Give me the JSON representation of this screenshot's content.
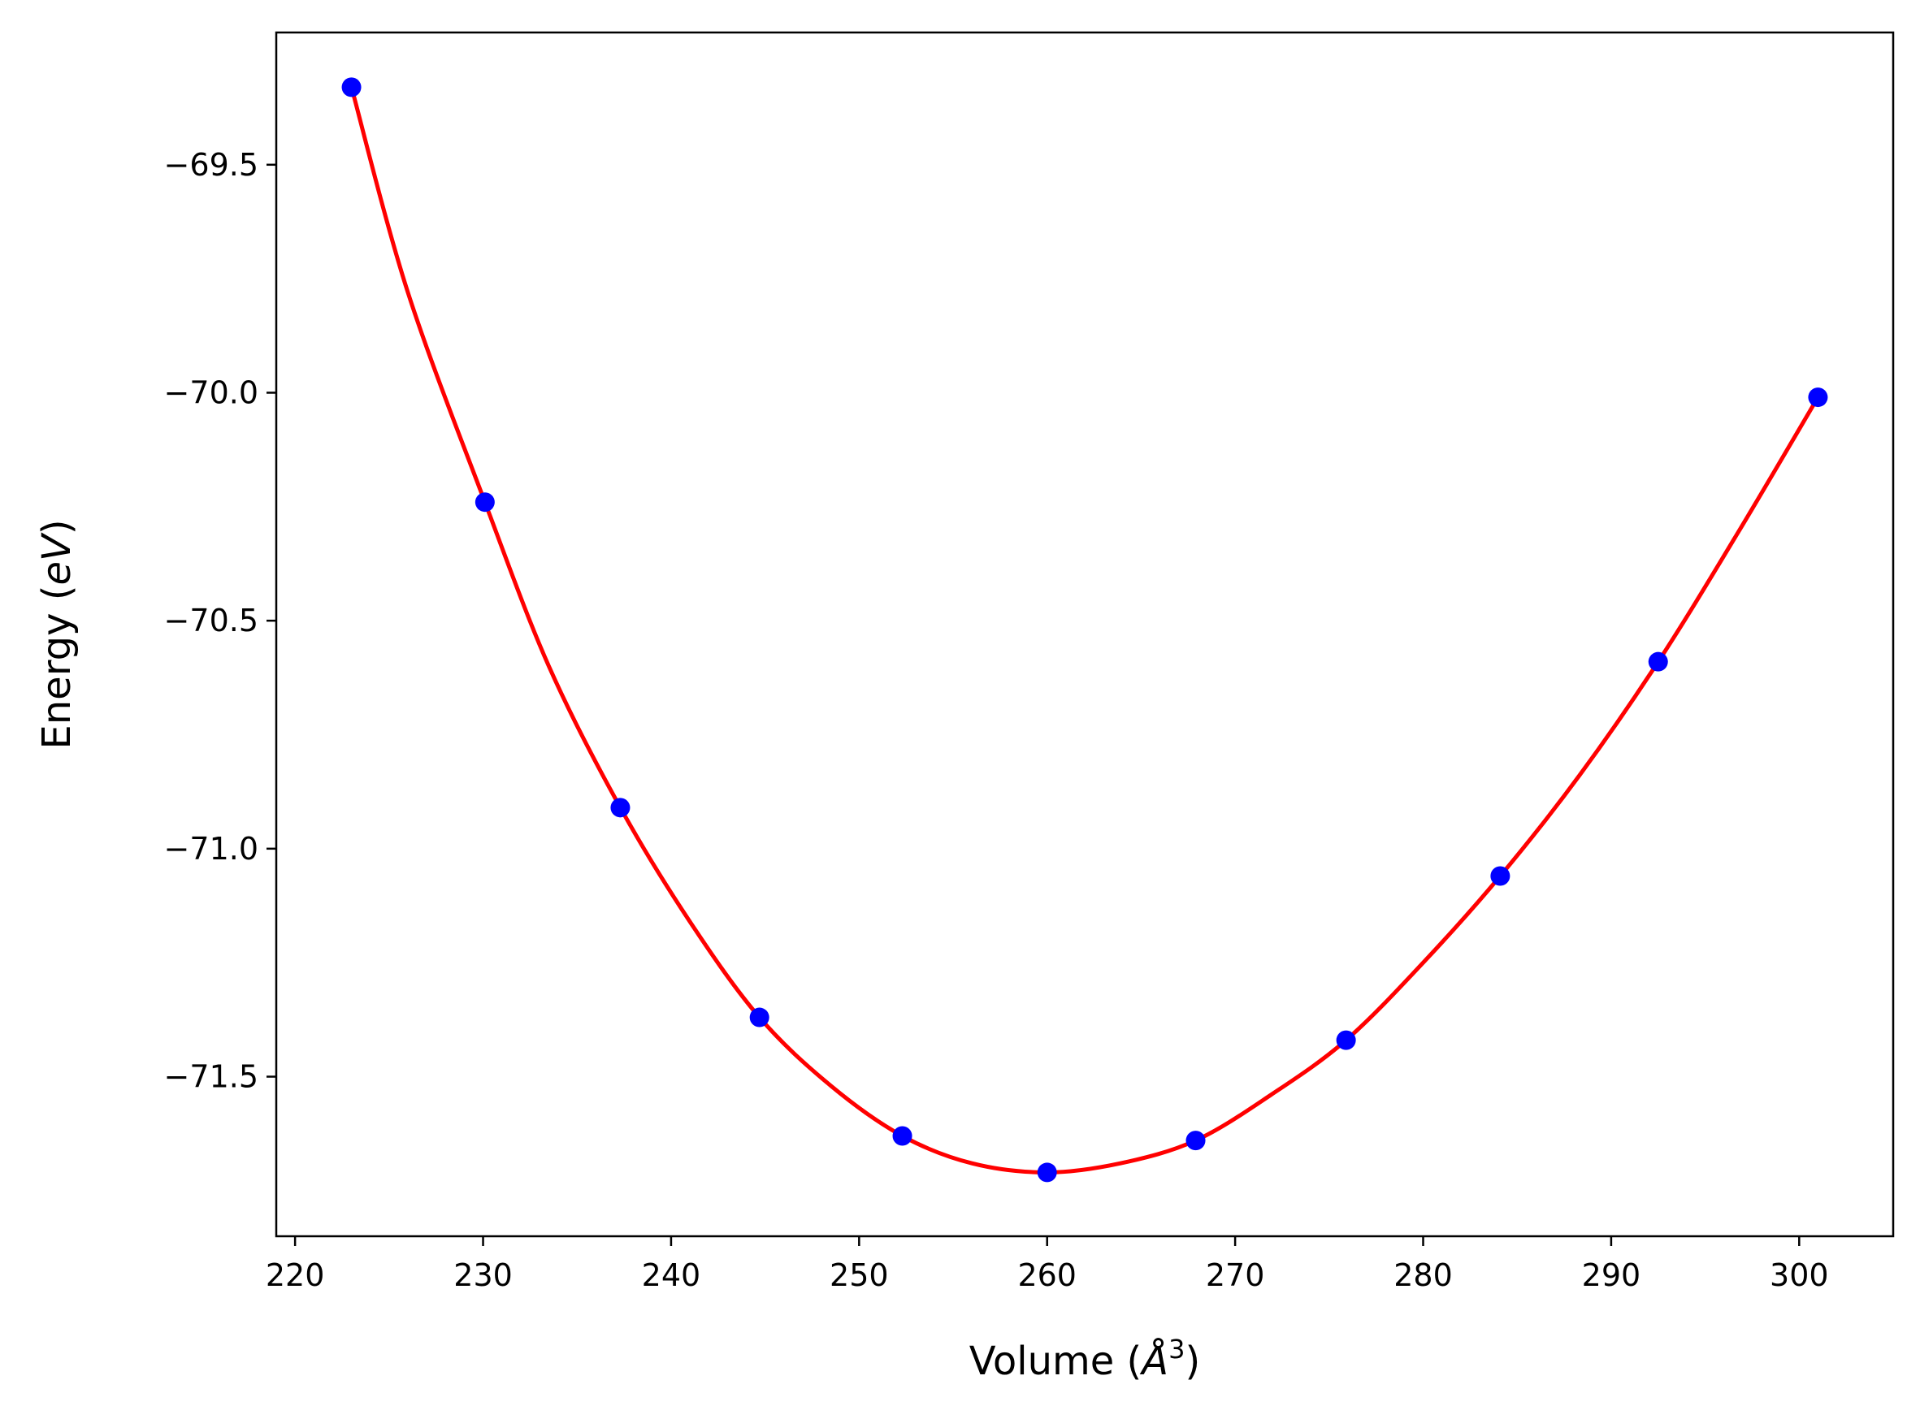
{
  "chart_data": {
    "type": "scatter",
    "xlabel": "Volume (",
    "xlabel_italic": "Å",
    "xlabel_sup": "3",
    "xlabel_close": ")",
    "ylabel": "Energy (",
    "ylabel_italic": "eV",
    "ylabel_close": ")",
    "xlim": [
      219,
      305
    ],
    "ylim": [
      -71.85,
      -69.21
    ],
    "xticks": [
      220,
      230,
      240,
      250,
      260,
      270,
      280,
      290,
      300
    ],
    "xtick_labels": [
      "220",
      "230",
      "240",
      "250",
      "260",
      "270",
      "280",
      "290",
      "300"
    ],
    "yticks": [
      -69.5,
      -70.0,
      -70.5,
      -71.0,
      -71.5
    ],
    "ytick_labels": [
      "−69.5",
      "−70.0",
      "−70.5",
      "−71.0",
      "−71.5"
    ],
    "grid": false,
    "series": [
      {
        "kind": "points",
        "color": "#0000ff",
        "x": [
          223.0,
          230.1,
          237.3,
          244.7,
          252.3,
          260.0,
          267.9,
          275.9,
          284.1,
          292.5,
          301.0
        ],
        "y": [
          -69.33,
          -70.24,
          -70.91,
          -71.37,
          -71.63,
          -71.71,
          -71.64,
          -71.42,
          -71.06,
          -70.59,
          -70.01
        ]
      },
      {
        "kind": "fit-curve",
        "color": "#ff0000",
        "x": [
          223.0,
          226.0,
          230.1,
          233.5,
          237.3,
          241.0,
          244.7,
          248.5,
          252.3,
          256.0,
          260.0,
          263.9,
          267.9,
          271.9,
          275.9,
          280.0,
          284.1,
          288.3,
          292.5,
          296.7,
          301.0
        ],
        "y": [
          -69.33,
          -69.78,
          -70.24,
          -70.6,
          -70.91,
          -71.16,
          -71.37,
          -71.52,
          -71.63,
          -71.69,
          -71.71,
          -71.69,
          -71.64,
          -71.54,
          -71.42,
          -71.25,
          -71.06,
          -70.84,
          -70.59,
          -70.31,
          -70.01
        ]
      }
    ]
  }
}
